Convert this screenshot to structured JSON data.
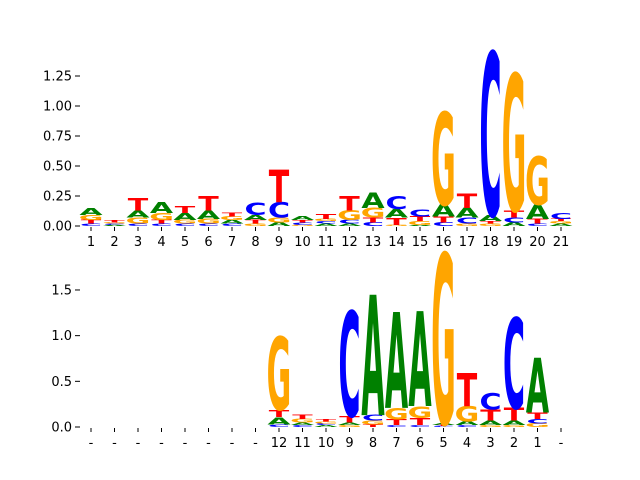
{
  "colors": {
    "A": "#008000",
    "C": "#0000ff",
    "G": "#ffa500",
    "T": "#ff0000"
  },
  "chart_data": [
    {
      "type": "sequence-logo",
      "ylim": [
        0,
        1.4
      ],
      "yticks": [
        "0.00",
        "0.25",
        "0.50",
        "0.75",
        "1.00",
        "1.25"
      ],
      "ytick_values": [
        0,
        0.25,
        0.5,
        0.75,
        1.0,
        1.25
      ],
      "xtick_labels": [
        "1",
        "2",
        "3",
        "4",
        "5",
        "6",
        "7",
        "8",
        "9",
        "10",
        "11",
        "12",
        "13",
        "14",
        "15",
        "16",
        "17",
        "18",
        "19",
        "20",
        "21"
      ],
      "positions": [
        {
          "A": 0.06,
          "C": 0.02,
          "G": 0.04,
          "T": 0.03
        },
        {
          "A": 0.01,
          "C": 0.01,
          "G": 0.01,
          "T": 0.02
        },
        {
          "A": 0.06,
          "C": 0.02,
          "G": 0.05,
          "T": 0.1
        },
        {
          "A": 0.09,
          "C": 0.02,
          "G": 0.06,
          "T": 0.03
        },
        {
          "A": 0.06,
          "C": 0.02,
          "G": 0.03,
          "T": 0.06
        },
        {
          "A": 0.07,
          "C": 0.02,
          "G": 0.04,
          "T": 0.12
        },
        {
          "A": 0.03,
          "C": 0.02,
          "G": 0.03,
          "T": 0.03
        },
        {
          "A": 0.04,
          "C": 0.1,
          "G": 0.02,
          "T": 0.03
        },
        {
          "A": 0.03,
          "C": 0.13,
          "G": 0.04,
          "T": 0.27
        },
        {
          "A": 0.03,
          "C": 0.02,
          "G": 0.01,
          "T": 0.02
        },
        {
          "A": 0.02,
          "C": 0.02,
          "G": 0.02,
          "T": 0.04
        },
        {
          "A": 0.02,
          "C": 0.03,
          "G": 0.08,
          "T": 0.12
        },
        {
          "A": 0.13,
          "C": 0.03,
          "G": 0.08,
          "T": 0.04
        },
        {
          "A": 0.07,
          "C": 0.11,
          "G": 0.01,
          "T": 0.06
        },
        {
          "A": 0.01,
          "C": 0.06,
          "G": 0.03,
          "T": 0.04
        },
        {
          "A": 0.1,
          "C": 0.03,
          "G": 0.77,
          "T": 0.05
        },
        {
          "A": 0.08,
          "C": 0.05,
          "G": 0.02,
          "T": 0.12
        },
        {
          "A": 0.05,
          "C": 1.36,
          "G": 0.02,
          "T": 0.02
        },
        {
          "A": 0.03,
          "C": 0.04,
          "G": 1.14,
          "T": 0.06
        },
        {
          "A": 0.12,
          "C": 0.02,
          "G": 0.4,
          "T": 0.04
        },
        {
          "A": 0.02,
          "C": 0.05,
          "G": 0.02,
          "T": 0.02
        }
      ]
    },
    {
      "type": "sequence-logo",
      "ylim": [
        0,
        1.85
      ],
      "yticks": [
        "0.0",
        "0.5",
        "1.0",
        "1.5"
      ],
      "ytick_values": [
        0,
        0.5,
        1.0,
        1.5
      ],
      "xtick_labels": [
        "-",
        "-",
        "-",
        "-",
        "-",
        "-",
        "-",
        "-",
        "12",
        "11",
        "10",
        "9",
        "8",
        "7",
        "6",
        "5",
        "4",
        "3",
        "2",
        "1",
        "-"
      ],
      "positions": [
        null,
        null,
        null,
        null,
        null,
        null,
        null,
        null,
        {
          "A": 0.08,
          "C": 0.03,
          "G": 0.8,
          "T": 0.08
        },
        {
          "A": 0.03,
          "C": 0.02,
          "G": 0.04,
          "T": 0.05
        },
        {
          "A": 0.02,
          "C": 0.02,
          "G": 0.02,
          "T": 0.03
        },
        {
          "A": 0.03,
          "C": 1.15,
          "G": 0.02,
          "T": 0.07
        },
        {
          "A": 1.32,
          "C": 0.06,
          "G": 0.04,
          "T": 0.03
        },
        {
          "A": 1.05,
          "C": 0.02,
          "G": 0.13,
          "T": 0.06
        },
        {
          "A": 1.04,
          "C": 0.02,
          "G": 0.13,
          "T": 0.08
        },
        {
          "A": 0.02,
          "C": 0.01,
          "G": 1.86,
          "T": 0.01
        },
        {
          "A": 0.04,
          "C": 0.02,
          "G": 0.17,
          "T": 0.36
        },
        {
          "A": 0.05,
          "C": 0.18,
          "G": 0.02,
          "T": 0.12
        },
        {
          "A": 0.05,
          "C": 0.99,
          "G": 0.02,
          "T": 0.14
        },
        {
          "A": 0.6,
          "C": 0.05,
          "G": 0.04,
          "T": 0.07
        },
        null
      ]
    }
  ]
}
